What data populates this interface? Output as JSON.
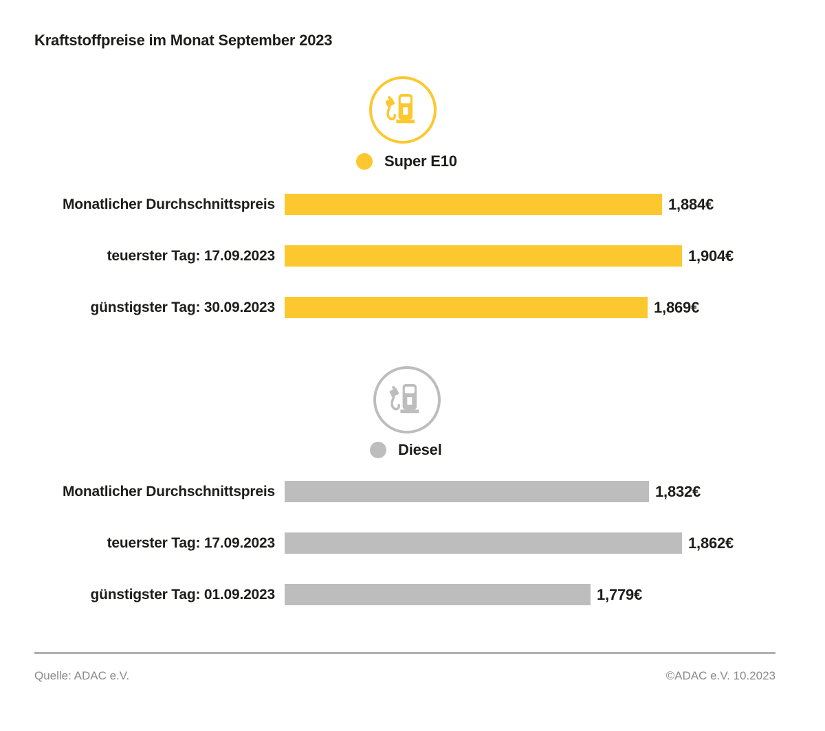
{
  "title": "Kraftstoffpreise im Monat September 2023",
  "colors": {
    "super_e10_yellow": "#FDC82F",
    "diesel_gray": "#BDBDBD",
    "text_dark": "#1D1D1B",
    "footer_muted": "#8A8A8A",
    "divider_gray": "#B1B1B1"
  },
  "chart_data": [
    {
      "type": "bar",
      "orientation": "horizontal",
      "legend_label": "Super E10",
      "icon": "fuel-pump-icon",
      "color": "#FDC82F",
      "categories": [
        "Monatlicher Durchschnittspreis",
        "teuerster Tag: 17.09.2023",
        "günstigster Tag: 30.09.2023"
      ],
      "values": [
        1.884,
        1.904,
        1.869
      ],
      "value_labels": [
        "1,884€",
        "1,904€",
        "1,869€"
      ],
      "xlim": [
        1.5,
        1.904
      ],
      "grid": false,
      "legend_position": "above-bars"
    },
    {
      "type": "bar",
      "orientation": "horizontal",
      "legend_label": "Diesel",
      "icon": "fuel-pump-icon",
      "color": "#BDBDBD",
      "categories": [
        "Monatlicher Durchschnittspreis",
        "teuerster Tag: 17.09.2023",
        "günstigster Tag: 01.09.2023"
      ],
      "values": [
        1.832,
        1.862,
        1.779
      ],
      "value_labels": [
        "1,832€",
        "1,862€",
        "1,779€"
      ],
      "xlim": [
        1.5,
        1.862
      ],
      "grid": false,
      "legend_position": "above-bars"
    }
  ],
  "footer": {
    "source": "Quelle: ADAC e.V.",
    "copyright": "©ADAC e.V. 10.2023"
  }
}
